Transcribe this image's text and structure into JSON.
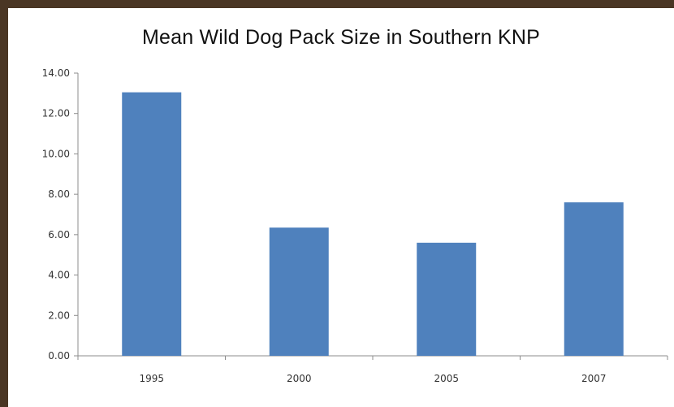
{
  "chart_data": {
    "type": "bar",
    "title": "Mean Wild Dog Pack Size in Southern KNP",
    "xlabel": "",
    "ylabel": "",
    "categories": [
      "1995",
      "2000",
      "2005",
      "2007"
    ],
    "values": [
      13.05,
      6.35,
      5.6,
      7.6
    ],
    "ylim": [
      0,
      14
    ],
    "yticks": [
      "0.00",
      "2.00",
      "4.00",
      "6.00",
      "8.00",
      "10.00",
      "12.00",
      "14.00"
    ],
    "grid": false,
    "legend": "none",
    "bar_color": "#4f81bd"
  }
}
